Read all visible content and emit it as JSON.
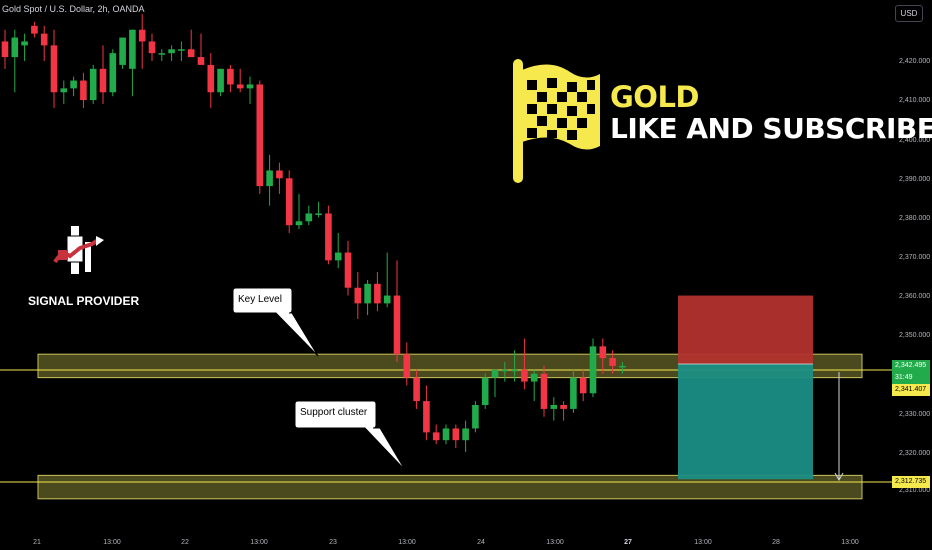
{
  "header": {
    "symbol_title": "Gold Spot / U.S. Dollar, 2h, OANDA",
    "currency": "USD"
  },
  "price_axis": {
    "ticks": [
      "2,420.000",
      "2,410.000",
      "2,400.000",
      "2,390.000",
      "2,380.000",
      "2,370.000",
      "2,360.000",
      "2,350.000",
      "2,330.000",
      "2,320.000",
      "2,310.000"
    ],
    "current_price": "2,342.495",
    "countdown": "31:49",
    "level_price": "2,341.407",
    "target_price": "2,312.735"
  },
  "time_axis": {
    "labels": [
      "21",
      "13:00",
      "22",
      "13:00",
      "23",
      "13:00",
      "24",
      "13:00",
      "27",
      "13:00",
      "28",
      "13:00"
    ]
  },
  "branding": {
    "headline": "GOLD",
    "call_to_action": "LIKE AND SUBSCRIBE!",
    "signal_provider": "SIGNAL PROVIDER"
  },
  "annotations": {
    "key_level": "Key Level",
    "support_cluster": "Support cluster"
  },
  "colors": {
    "up_candle": "#22ab4b",
    "down_candle": "#f23645",
    "zone_fill": "#4b4a1e",
    "zone_border": "#c9c25c",
    "stop_zone": "#b2322e",
    "target_zone": "#1b8e85",
    "brand_yellow": "#f5e94e"
  },
  "chart_data": {
    "type": "candlestick",
    "ylim": [
      2310,
      2428
    ],
    "series": [
      {
        "o": 2425,
        "h": 2428,
        "l": 2418,
        "c": 2421
      },
      {
        "o": 2421,
        "h": 2428,
        "l": 2412,
        "c": 2426
      },
      {
        "o": 2424,
        "h": 2427,
        "l": 2420,
        "c": 2425
      },
      {
        "o": 2429,
        "h": 2430,
        "l": 2426,
        "c": 2427
      },
      {
        "o": 2427,
        "h": 2429,
        "l": 2420,
        "c": 2424
      },
      {
        "o": 2424,
        "h": 2428,
        "l": 2408,
        "c": 2412
      },
      {
        "o": 2412,
        "h": 2415,
        "l": 2409,
        "c": 2413
      },
      {
        "o": 2413,
        "h": 2416,
        "l": 2411,
        "c": 2415
      },
      {
        "o": 2415,
        "h": 2417,
        "l": 2408,
        "c": 2410
      },
      {
        "o": 2410,
        "h": 2419,
        "l": 2409,
        "c": 2418
      },
      {
        "o": 2418,
        "h": 2424,
        "l": 2409,
        "c": 2412
      },
      {
        "o": 2412,
        "h": 2423,
        "l": 2411,
        "c": 2422
      },
      {
        "o": 2419,
        "h": 2426,
        "l": 2418,
        "c": 2426
      },
      {
        "o": 2418,
        "h": 2428,
        "l": 2411,
        "c": 2428
      },
      {
        "o": 2428,
        "h": 2432,
        "l": 2418,
        "c": 2425
      },
      {
        "o": 2425,
        "h": 2427,
        "l": 2420,
        "c": 2422
      },
      {
        "o": 2422,
        "h": 2423,
        "l": 2420,
        "c": 2422
      },
      {
        "o": 2422,
        "h": 2424,
        "l": 2420,
        "c": 2423
      },
      {
        "o": 2423,
        "h": 2425,
        "l": 2420,
        "c": 2423
      },
      {
        "o": 2423,
        "h": 2428,
        "l": 2421,
        "c": 2421
      },
      {
        "o": 2421,
        "h": 2427,
        "l": 2419,
        "c": 2419
      },
      {
        "o": 2419,
        "h": 2422,
        "l": 2408,
        "c": 2412
      },
      {
        "o": 2412,
        "h": 2418,
        "l": 2411,
        "c": 2418
      },
      {
        "o": 2418,
        "h": 2419,
        "l": 2412,
        "c": 2414
      },
      {
        "o": 2414,
        "h": 2418,
        "l": 2412,
        "c": 2413
      },
      {
        "o": 2413,
        "h": 2416,
        "l": 2409,
        "c": 2414
      },
      {
        "o": 2414,
        "h": 2415,
        "l": 2386,
        "c": 2388
      },
      {
        "o": 2388,
        "h": 2396,
        "l": 2383,
        "c": 2392
      },
      {
        "o": 2392,
        "h": 2394,
        "l": 2386,
        "c": 2390
      },
      {
        "o": 2390,
        "h": 2392,
        "l": 2376,
        "c": 2378
      },
      {
        "o": 2378,
        "h": 2386,
        "l": 2377,
        "c": 2379
      },
      {
        "o": 2379,
        "h": 2383,
        "l": 2378,
        "c": 2381
      },
      {
        "o": 2381,
        "h": 2384,
        "l": 2380,
        "c": 2381
      },
      {
        "o": 2381,
        "h": 2383,
        "l": 2368,
        "c": 2369
      },
      {
        "o": 2369,
        "h": 2376,
        "l": 2367,
        "c": 2371
      },
      {
        "o": 2371,
        "h": 2374,
        "l": 2360,
        "c": 2362
      },
      {
        "o": 2362,
        "h": 2366,
        "l": 2354,
        "c": 2358
      },
      {
        "o": 2358,
        "h": 2364,
        "l": 2355,
        "c": 2363
      },
      {
        "o": 2363,
        "h": 2366,
        "l": 2356,
        "c": 2358
      },
      {
        "o": 2358,
        "h": 2371,
        "l": 2357,
        "c": 2360
      },
      {
        "o": 2360,
        "h": 2369,
        "l": 2343,
        "c": 2345
      },
      {
        "o": 2345,
        "h": 2348,
        "l": 2337,
        "c": 2339
      },
      {
        "o": 2339,
        "h": 2341,
        "l": 2331,
        "c": 2333
      },
      {
        "o": 2333,
        "h": 2337,
        "l": 2323,
        "c": 2325
      },
      {
        "o": 2325,
        "h": 2327,
        "l": 2322,
        "c": 2323
      },
      {
        "o": 2323,
        "h": 2327,
        "l": 2322,
        "c": 2326
      },
      {
        "o": 2326,
        "h": 2327,
        "l": 2321,
        "c": 2323
      },
      {
        "o": 2323,
        "h": 2328,
        "l": 2320,
        "c": 2326
      },
      {
        "o": 2326,
        "h": 2333,
        "l": 2325,
        "c": 2332
      },
      {
        "o": 2332,
        "h": 2340,
        "l": 2331,
        "c": 2339
      },
      {
        "o": 2339,
        "h": 2341,
        "l": 2334,
        "c": 2341
      },
      {
        "o": 2341,
        "h": 2343,
        "l": 2338,
        "c": 2341
      },
      {
        "o": 2341,
        "h": 2346,
        "l": 2338,
        "c": 2341
      },
      {
        "o": 2341,
        "h": 2349,
        "l": 2336,
        "c": 2338
      },
      {
        "o": 2338,
        "h": 2341,
        "l": 2333,
        "c": 2340
      },
      {
        "o": 2340,
        "h": 2342,
        "l": 2329,
        "c": 2331
      },
      {
        "o": 2331,
        "h": 2334,
        "l": 2328,
        "c": 2332
      },
      {
        "o": 2332,
        "h": 2333,
        "l": 2328,
        "c": 2331
      },
      {
        "o": 2331,
        "h": 2341,
        "l": 2330,
        "c": 2339
      },
      {
        "o": 2339,
        "h": 2341,
        "l": 2333,
        "c": 2335
      },
      {
        "o": 2335,
        "h": 2349,
        "l": 2334,
        "c": 2347
      },
      {
        "o": 2347,
        "h": 2349,
        "l": 2340,
        "c": 2344
      },
      {
        "o": 2344,
        "h": 2346,
        "l": 2340,
        "c": 2342
      },
      {
        "o": 2342,
        "h": 2343,
        "l": 2340,
        "c": 2342
      }
    ],
    "key_level_zone": [
      2339,
      2345
    ],
    "support_zone": [
      2308,
      2314
    ],
    "stop_zone": [
      2342.5,
      2360
    ],
    "target_zone": [
      2313,
      2342.5
    ]
  }
}
